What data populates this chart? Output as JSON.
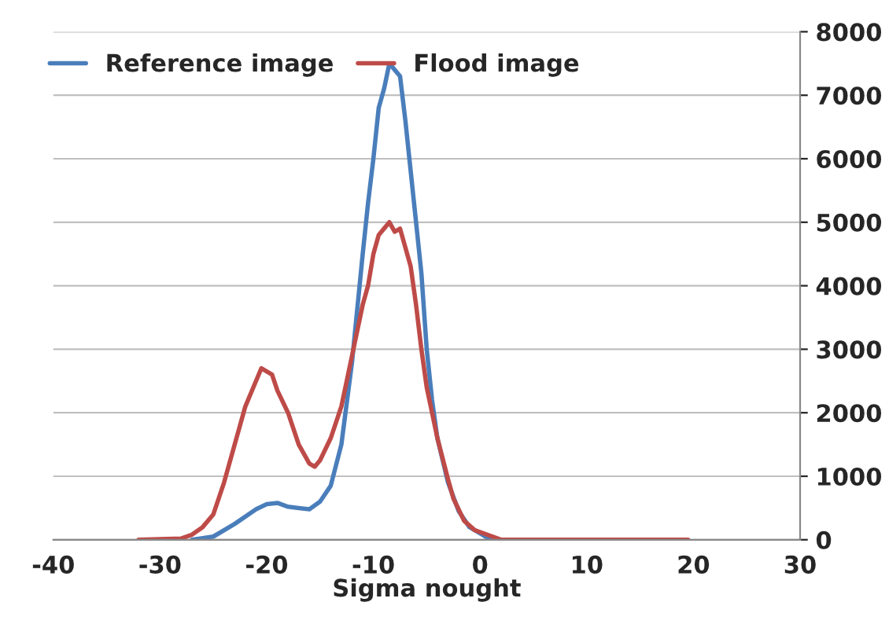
{
  "chart_data": {
    "type": "line",
    "xlabel": "Sigma nought",
    "xlim": [
      -40,
      30
    ],
    "xticks": [
      -40,
      -30,
      -20,
      -10,
      0,
      10,
      20,
      30
    ],
    "ylim": [
      0,
      8000
    ],
    "yticks": [
      0,
      1000,
      2000,
      3000,
      4000,
      5000,
      6000,
      7000,
      8000
    ],
    "grid": "y",
    "legend": "top",
    "marker": "none",
    "line_style": "solid",
    "series": [
      {
        "name": "Reference image",
        "color": "#4a7ebb",
        "x": [
          -27,
          -25,
          -23,
          -21,
          -20,
          -19,
          -18,
          -17,
          -16,
          -15,
          -14,
          -13,
          -12,
          -11,
          -10.5,
          -10,
          -9.5,
          -9,
          -8.5,
          -8,
          -7.5,
          -7,
          -6.5,
          -6,
          -5.5,
          -5,
          -4.5,
          -4,
          -3,
          -2,
          -1,
          0,
          1
        ],
        "values": [
          0,
          50,
          250,
          480,
          560,
          580,
          520,
          500,
          480,
          600,
          850,
          1500,
          2800,
          4500,
          5300,
          6000,
          6800,
          7100,
          7500,
          7400,
          7300,
          6600,
          5800,
          5000,
          4200,
          3000,
          2200,
          1600,
          900,
          450,
          200,
          100,
          0
        ]
      },
      {
        "name": "Flood image",
        "color": "#be4b48",
        "x": [
          -32,
          -28,
          -27,
          -26,
          -25,
          -24,
          -23,
          -22,
          -21,
          -20.5,
          -20,
          -19.5,
          -19,
          -18,
          -17,
          -16,
          -15.5,
          -15,
          -14,
          -13,
          -12,
          -11,
          -10.5,
          -10,
          -9.5,
          -9,
          -8.5,
          -8,
          -7.5,
          -7,
          -6.5,
          -6,
          -5.5,
          -5,
          -4,
          -3,
          -2.5,
          -1.5,
          -0.5,
          2,
          19.5
        ],
        "values": [
          0,
          20,
          80,
          200,
          400,
          900,
          1500,
          2100,
          2500,
          2700,
          2650,
          2600,
          2350,
          2000,
          1500,
          1200,
          1150,
          1250,
          1600,
          2100,
          2900,
          3700,
          4000,
          4500,
          4800,
          4900,
          5000,
          4850,
          4900,
          4600,
          4300,
          3700,
          3000,
          2400,
          1600,
          950,
          650,
          300,
          150,
          0,
          0
        ]
      }
    ]
  }
}
